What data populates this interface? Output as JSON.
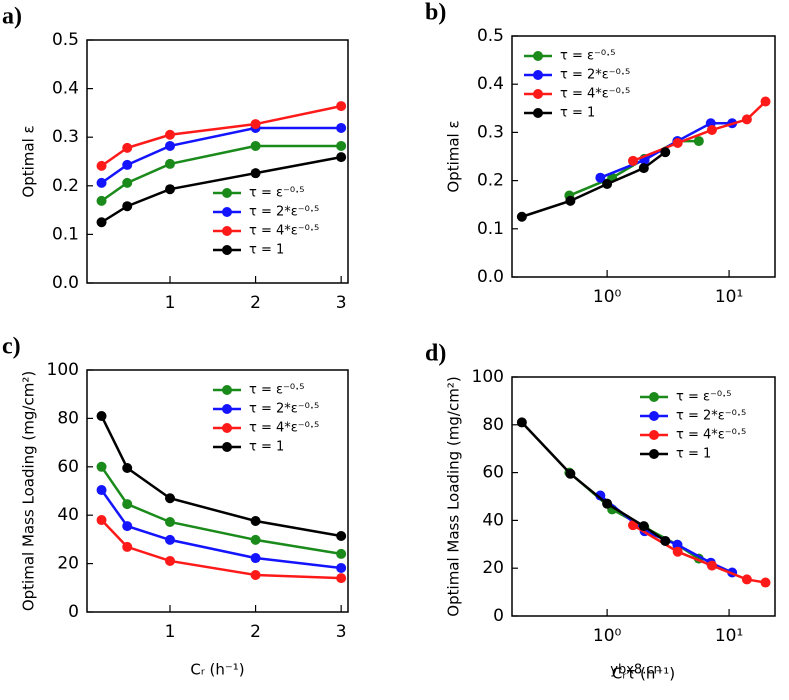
{
  "chart_data": [
    {
      "type": "line",
      "panel_label": "a)",
      "ylabel": "Optimal ε",
      "x": [
        0.2,
        0.5,
        1,
        2,
        3
      ],
      "xlim": [
        0.03,
        3.08
      ],
      "xticks": [
        1,
        2,
        3
      ],
      "ylim": [
        0,
        0.5
      ],
      "yticks": [
        {
          "value": 0,
          "label": "0.0"
        },
        0.1,
        0.2,
        0.3,
        0.4,
        0.5
      ],
      "legend": "lower right",
      "series": [
        {
          "name": "τ = ε⁻⁰·⁵",
          "color": "#1a8a1a",
          "values": [
            0.169,
            0.206,
            0.245,
            0.282,
            0.282
          ]
        },
        {
          "name": "τ = 2*ε⁻⁰·⁵",
          "color": "#1414ff",
          "values": [
            0.206,
            0.243,
            0.282,
            0.319,
            0.319
          ]
        },
        {
          "name": "τ = 4*ε⁻⁰·⁵",
          "color": "#ff1a1a",
          "values": [
            0.241,
            0.278,
            0.305,
            0.327,
            0.364
          ]
        },
        {
          "name": "τ = 1",
          "color": "#000000",
          "values": [
            0.125,
            0.158,
            0.193,
            0.226,
            0.259
          ]
        }
      ]
    },
    {
      "type": "line",
      "panel_label": "b)",
      "ylabel": "Optimal ε",
      "xscale": "log",
      "xlim": [
        0.166,
        23.8
      ],
      "xticks": [
        {
          "value": 1,
          "label": "10⁰"
        },
        {
          "value": 10,
          "label": "10¹"
        }
      ],
      "ylim": [
        0,
        0.5
      ],
      "yticks": [
        {
          "value": 0,
          "label": "0.0"
        },
        0.1,
        0.2,
        0.3,
        0.4,
        0.5
      ],
      "legend": "upper left",
      "series": [
        {
          "name": "τ = ε⁻⁰·⁵",
          "color": "#1a8a1a",
          "x": [
            0.49,
            1.1,
            2.02,
            3.77,
            5.65
          ],
          "values": [
            0.169,
            0.206,
            0.245,
            0.282,
            0.282
          ]
        },
        {
          "name": "τ = 2*ε⁻⁰·⁵",
          "color": "#1414ff",
          "x": [
            0.88,
            2.03,
            3.77,
            7.08,
            10.6
          ],
          "values": [
            0.206,
            0.243,
            0.282,
            0.319,
            0.319
          ]
        },
        {
          "name": "τ = 4*ε⁻⁰·⁵",
          "color": "#ff1a1a",
          "x": [
            1.63,
            3.79,
            7.24,
            14.0,
            19.9
          ],
          "values": [
            0.241,
            0.278,
            0.305,
            0.327,
            0.364
          ]
        },
        {
          "name": "τ = 1",
          "color": "#000000",
          "x": [
            0.2,
            0.5,
            1,
            2,
            3
          ],
          "values": [
            0.125,
            0.158,
            0.193,
            0.226,
            0.259
          ]
        }
      ]
    },
    {
      "type": "line",
      "panel_label": "c)",
      "ylabel": "Optimal Mass Loading (mg/cm²)",
      "xlabel": "Cᵣ (h⁻¹)",
      "x": [
        0.2,
        0.5,
        1,
        2,
        3
      ],
      "xlim": [
        0.03,
        3.08
      ],
      "xticks": [
        1,
        2,
        3
      ],
      "ylim": [
        0,
        100
      ],
      "yticks": [
        0,
        20,
        40,
        60,
        80,
        100
      ],
      "legend": "upper right",
      "series": [
        {
          "name": "τ = ε⁻⁰·⁵",
          "color": "#1a8a1a",
          "values": [
            60,
            44.6,
            37.2,
            29.8,
            24
          ]
        },
        {
          "name": "τ = 2*ε⁻⁰·⁵",
          "color": "#1414ff",
          "values": [
            50.4,
            35.5,
            29.8,
            22.3,
            18.2
          ]
        },
        {
          "name": "τ = 4*ε⁻⁰·⁵",
          "color": "#ff1a1a",
          "values": [
            38,
            26.9,
            21.1,
            15.3,
            14
          ]
        },
        {
          "name": "τ = 1",
          "color": "#000000",
          "values": [
            81,
            59.5,
            47,
            37.6,
            31.4
          ]
        }
      ]
    },
    {
      "type": "line",
      "panel_label": "d)",
      "ylabel": "Optimal Mass Loading (mg/cm²)",
      "xlabel": "Cᵣτ (h⁻¹)",
      "xscale": "log",
      "xlim": [
        0.166,
        23.8
      ],
      "xticks": [
        {
          "value": 1,
          "label": "10⁰"
        },
        {
          "value": 10,
          "label": "10¹"
        }
      ],
      "ylim": [
        0,
        100
      ],
      "yticks": [
        0,
        20,
        40,
        60,
        80,
        100
      ],
      "legend": "upper right",
      "series": [
        {
          "name": "τ = ε⁻⁰·⁵",
          "color": "#1a8a1a",
          "x": [
            0.49,
            1.1,
            2.02,
            3.77,
            5.65
          ],
          "values": [
            60,
            44.6,
            37.2,
            29.8,
            24
          ]
        },
        {
          "name": "τ = 2*ε⁻⁰·⁵",
          "color": "#1414ff",
          "x": [
            0.88,
            2.03,
            3.77,
            7.08,
            10.6
          ],
          "values": [
            50.4,
            35.5,
            29.8,
            22.3,
            18.2
          ]
        },
        {
          "name": "τ = 4*ε⁻⁰·⁵",
          "color": "#ff1a1a",
          "x": [
            1.63,
            3.79,
            7.24,
            14.0,
            19.9
          ],
          "values": [
            38,
            26.9,
            21.1,
            15.3,
            14
          ]
        },
        {
          "name": "τ = 1",
          "color": "#000000",
          "x": [
            0.2,
            0.5,
            1,
            2,
            3
          ],
          "values": [
            81,
            59.5,
            47,
            37.6,
            31.4
          ]
        }
      ]
    }
  ],
  "watermark": "ybx8.cn"
}
